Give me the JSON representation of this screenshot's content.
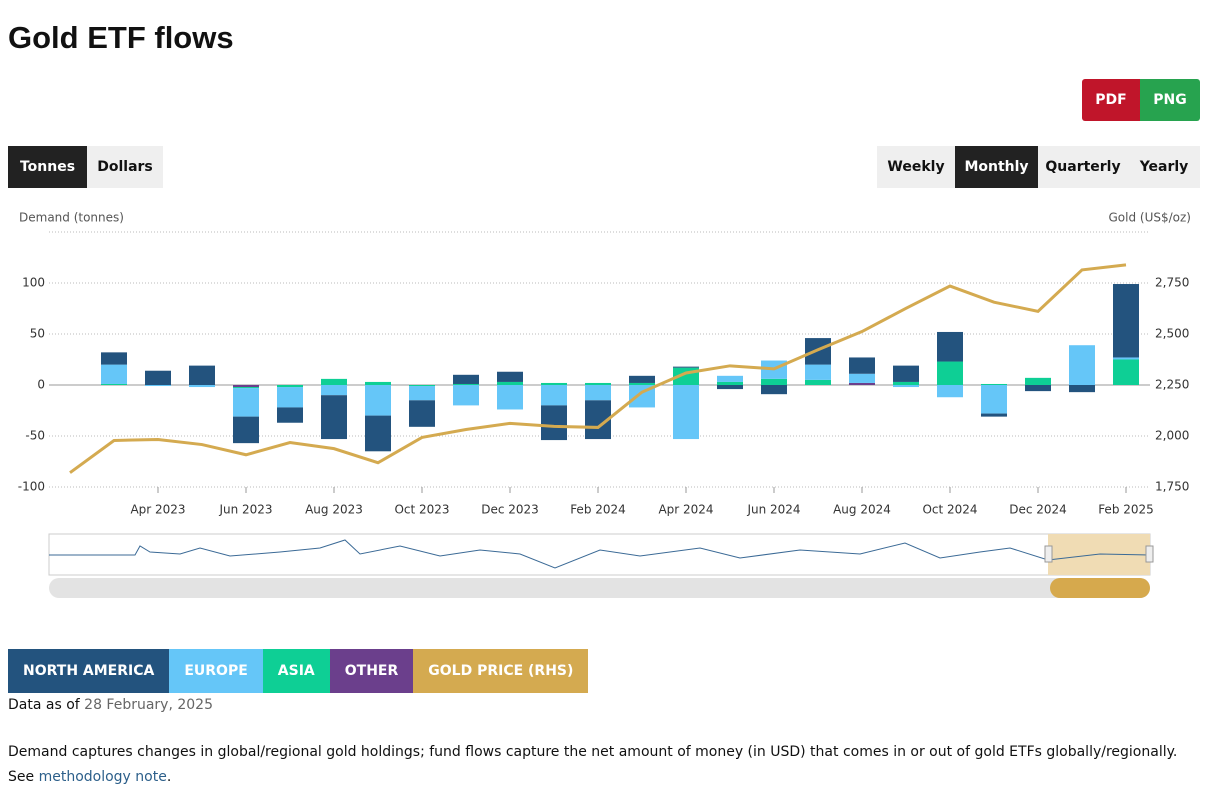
{
  "title": "Gold ETF flows",
  "export_buttons": [
    "PDF",
    "PNG"
  ],
  "unit_buttons": [
    "Tonnes",
    "Dollars"
  ],
  "period_buttons": [
    "Weekly",
    "Monthly",
    "Quarterly",
    "Yearly"
  ],
  "chart_data": {
    "type": "bar",
    "ylabel": "Demand (tonnes)",
    "y2label": "Gold (US$/oz)",
    "categories": [
      null,
      null,
      "Apr 2023",
      null,
      "Jun 2023",
      null,
      "Aug 2023",
      null,
      "Oct 2023",
      null,
      "Dec 2023",
      null,
      "Feb 2024",
      null,
      "Apr 2024",
      null,
      "Jun 2024",
      null,
      "Aug 2024",
      null,
      "Oct 2024",
      null,
      "Dec 2024",
      null,
      "Feb 2025"
    ],
    "series": [
      {
        "name": "NORTH AMERICA",
        "color": "#23537e",
        "values": [
          null,
          12,
          14,
          19,
          -26,
          -15,
          -43,
          -35,
          -26,
          9,
          10,
          -34,
          -38,
          7,
          1,
          -4,
          -9,
          26,
          16,
          16,
          29,
          -3,
          -6,
          -7,
          72
        ]
      },
      {
        "name": "EUROPE",
        "color": "#65c6f8",
        "values": [
          null,
          19,
          -1,
          -2,
          -28,
          -20,
          -10,
          -30,
          -14,
          -20,
          -24,
          -20,
          -15,
          -22,
          -53,
          6,
          18,
          15,
          9,
          -2,
          -12,
          -28,
          0,
          39,
          2
        ]
      },
      {
        "name": "ASIA",
        "color": "#0ecf95",
        "values": [
          null,
          1,
          0,
          0,
          -1,
          -2,
          6,
          3,
          -1,
          1,
          3,
          2,
          2,
          2,
          17,
          3,
          6,
          5,
          0,
          3,
          23,
          1,
          7,
          0,
          25
        ]
      },
      {
        "name": "OTHER",
        "color": "#6b3f8c",
        "values": [
          null,
          0,
          0,
          0,
          -2,
          0,
          0,
          0,
          0,
          0,
          0,
          0,
          0,
          0,
          0,
          0,
          0,
          0,
          2,
          0,
          0,
          0,
          0,
          0,
          0
        ]
      },
      {
        "name": "GOLD PRICE (RHS)",
        "color": "#d4aa50",
        "type": "line",
        "axis": "y2",
        "values": [
          1820,
          1978,
          1983,
          1958,
          1908,
          1968,
          1938,
          1869,
          1993,
          2032,
          2062,
          2047,
          2042,
          2215,
          2309,
          2344,
          2329,
          2423,
          2512,
          2626,
          2735,
          2656,
          2611,
          2814,
          2839
        ]
      }
    ],
    "ylim": [
      -100,
      150
    ],
    "yticks": [
      -100,
      -50,
      0,
      50,
      100
    ],
    "y2lim": [
      1750,
      3000
    ],
    "y2ticks": [
      {
        "value": 1750,
        "label": "1,750"
      },
      {
        "value": 2000,
        "label": "2,000"
      },
      {
        "value": 2250,
        "label": "2,250"
      },
      {
        "value": 2500,
        "label": "2,500"
      },
      {
        "value": 2750,
        "label": "2,750"
      }
    ],
    "grid": true
  },
  "data_as_of": {
    "label": "Data as of",
    "date": "28 February, 2025"
  },
  "footnote": {
    "text": "Demand captures changes in global/regional gold holdings; fund flows capture the net amount of money (in USD) that comes in or out of gold ETFs globally/regionally. See",
    "link": "methodology note",
    "end": "."
  }
}
